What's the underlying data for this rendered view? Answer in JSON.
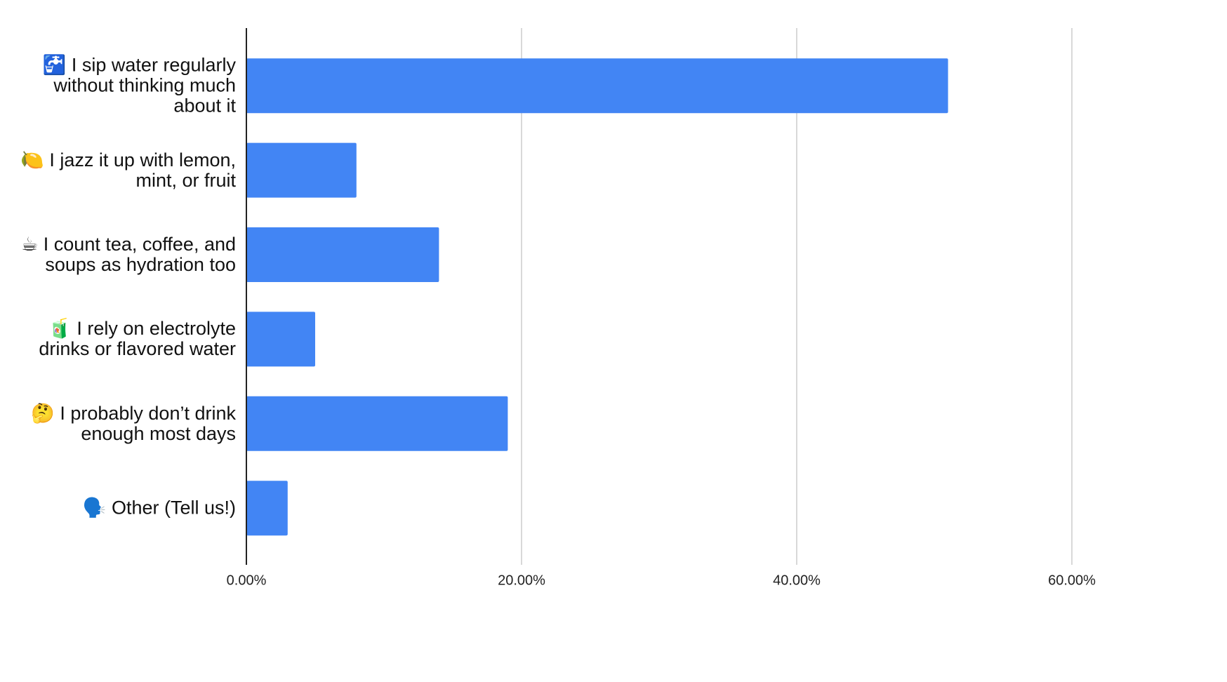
{
  "chart_data": {
    "type": "bar",
    "orientation": "horizontal",
    "categories": [
      "🚰 I sip water regularly without thinking much about it",
      "🍋 I jazz it up with lemon, mint, or fruit",
      "☕ I count tea, coffee, and soups as hydration too",
      "🧃 I rely on electrolyte drinks or flavored water",
      "🤔 I probably don’t drink enough most days",
      "🗣️ Other (Tell us!)"
    ],
    "values": [
      51,
      8,
      14,
      5,
      19,
      3
    ],
    "color": "#4285f4",
    "xlim": [
      0,
      60
    ],
    "xticks": [
      {
        "value": 0,
        "label": "0.00%"
      },
      {
        "value": 20,
        "label": "20.00%"
      },
      {
        "value": 40,
        "label": "40.00%"
      },
      {
        "value": 60,
        "label": "60.00%"
      }
    ],
    "grid": true
  }
}
